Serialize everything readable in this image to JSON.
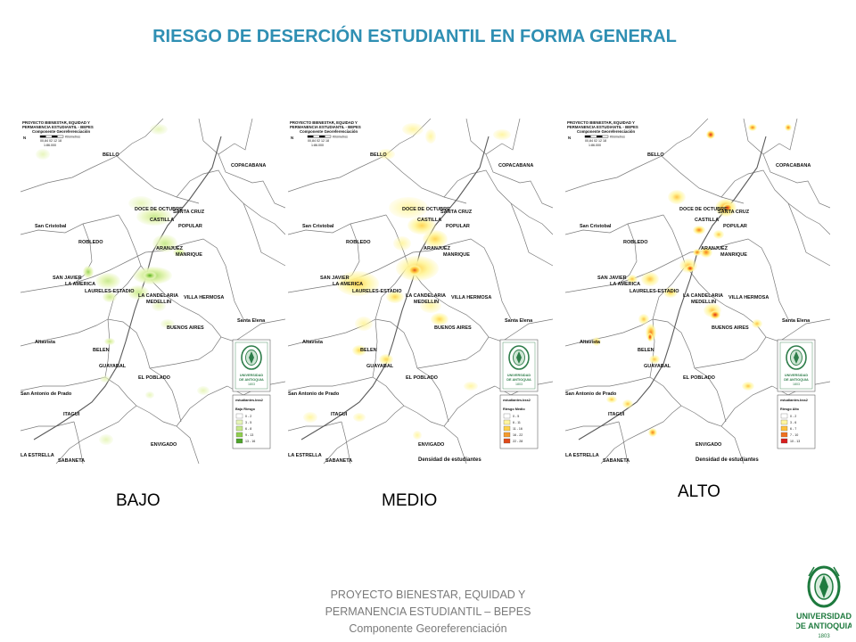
{
  "title": "RIESGO DE DESERCIÓN ESTUDIANTIL EN FORMA GENERAL",
  "map_header": {
    "line1": "PROYECTO BIENESTAR, EQUIDAD Y",
    "line2": "PERMANENCIA ESTUDIANTIL - BEPES",
    "line3": "Componente Georeferenciación",
    "scale_units": "Kilómetros",
    "scale_ticks": "00,84 02 12 18",
    "scale_ratio": "1:86.000",
    "north": "N"
  },
  "place_labels": {
    "bello": "BELLO",
    "copacabana": "COPACABANA",
    "doce": "DOCE DE OCTUBRE",
    "santa_cruz": "SANTA CRUZ",
    "castilla": "CASTILLA",
    "popular": "POPULAR",
    "san_cristobal": "San Cristobal",
    "robledo": "ROBLEDO",
    "aranjuez": "ARANJUEZ",
    "manrique": "MANRIQUE",
    "san_javier": "SAN JAVIER",
    "la_america": "LA AMERICA",
    "laureles": "LAURELES-ESTADIO",
    "candelaria": "LA CANDELARIA",
    "medellin": "MEDELLIN",
    "villa_hermosa": "VILLA HERMOSA",
    "santa_elena": "Santa Elena",
    "buenos_aires": "BUENOS AIRES",
    "altavista": "Altavista",
    "belen": "BELEN",
    "guayabal": "GUAYABAL",
    "el_poblado": "EL POBLADO",
    "san_antonio": "San Antonio de Prado",
    "itagui": "ITAGUI",
    "envigado": "ENVIGADO",
    "la_estrella": "LA ESTRELLA",
    "sabaneta": "SABANETA"
  },
  "university": {
    "line1": "UNIVERSIDAD",
    "line2": "DE ANTIOQUIA",
    "year": "1803"
  },
  "density_label": "Densidad de estudiantes",
  "legend_header": "estudiantes.bss2",
  "maps": [
    {
      "caption": "BAJO",
      "legend_title": "Bajo Riesgo",
      "legend_classes": [
        "0 - 2",
        "3 - 5",
        "6 - 8",
        "9 - 13",
        "13 - 16"
      ],
      "legend_colors": [
        "#ffffff",
        "#e6f5b8",
        "#c6e88a",
        "#90cf4e",
        "#4ea32a"
      ]
    },
    {
      "caption": "MEDIO",
      "legend_title": "Riesgo Medio",
      "legend_classes": [
        "0 - 5",
        "6 - 11",
        "11 - 16",
        "16 - 22",
        "22 - 28"
      ],
      "legend_colors": [
        "#ffffff",
        "#fff59e",
        "#ffd24a",
        "#f59b2b",
        "#e04a1a"
      ]
    },
    {
      "caption": "ALTO",
      "legend_title": "Riesgo Alto",
      "legend_classes": [
        "0 - 2",
        "3 - 6",
        "6 - 7",
        "7 - 10",
        "10 - 13"
      ],
      "legend_colors": [
        "#ffffff",
        "#fff59e",
        "#ffc03a",
        "#f07020",
        "#d81e1e"
      ]
    }
  ],
  "footer": {
    "line1": "PROYECTO BIENESTAR, EQUIDAD Y",
    "line2": "PERMANENCIA ESTUDIANTIL – BEPES",
    "line3": "Componente Georeferenciación"
  }
}
